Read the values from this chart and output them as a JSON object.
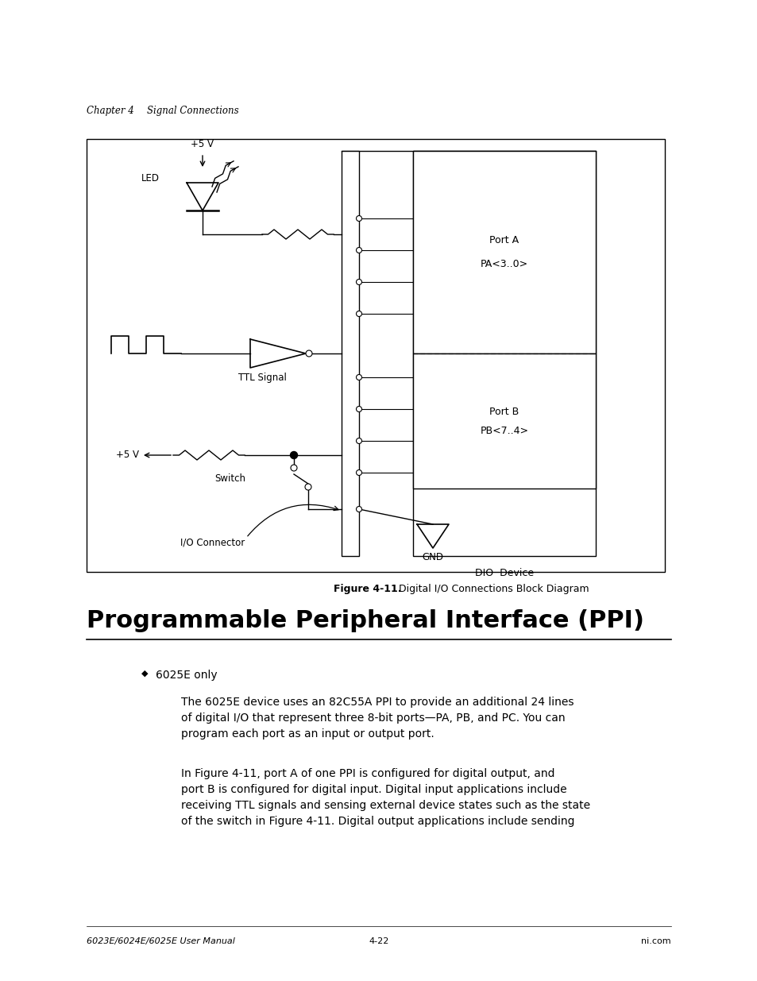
{
  "page_bg": "#ffffff",
  "header_text_ch": "Chapter 4",
  "header_text_sc": "Signal Connections",
  "figure_caption_bold": "Figure 4-11.",
  "figure_caption_rest": "  Digital I/O Connections Block Diagram",
  "section_title": "Programmable Peripheral Interface (PPI)",
  "bullet_text": "6025E only",
  "para1": "The 6025E device uses an 82C55A PPI to provide an additional 24 lines\nof digital I/O that represent three 8-bit ports—PA, PB, and PC. You can\nprogram each port as an input or output port.",
  "para2": "In Figure 4-11, port A of one PPI is configured for digital output, and\nport B is configured for digital input. Digital input applications include\nreceiving TTL signals and sensing external device states such as the state\nof the switch in Figure 4-11. Digital output applications include sending",
  "footer_left": "6023E/6024E/6025E User Manual",
  "footer_center": "4-22",
  "footer_right": "ni.com",
  "diag_label": "DIO  Device",
  "port_a_label": "Port A",
  "port_a_sub": "PA<3..0>",
  "port_b_label": "Port B",
  "port_b_sub": "PB<7..4>",
  "gnd_label": "GND",
  "ttl_label": "TTL Signal",
  "switch_label": "Switch",
  "connector_label": "I/O Connector",
  "led_label": "LED",
  "plus5v_top": "+5 V",
  "plus5v_bot": "+5 V"
}
